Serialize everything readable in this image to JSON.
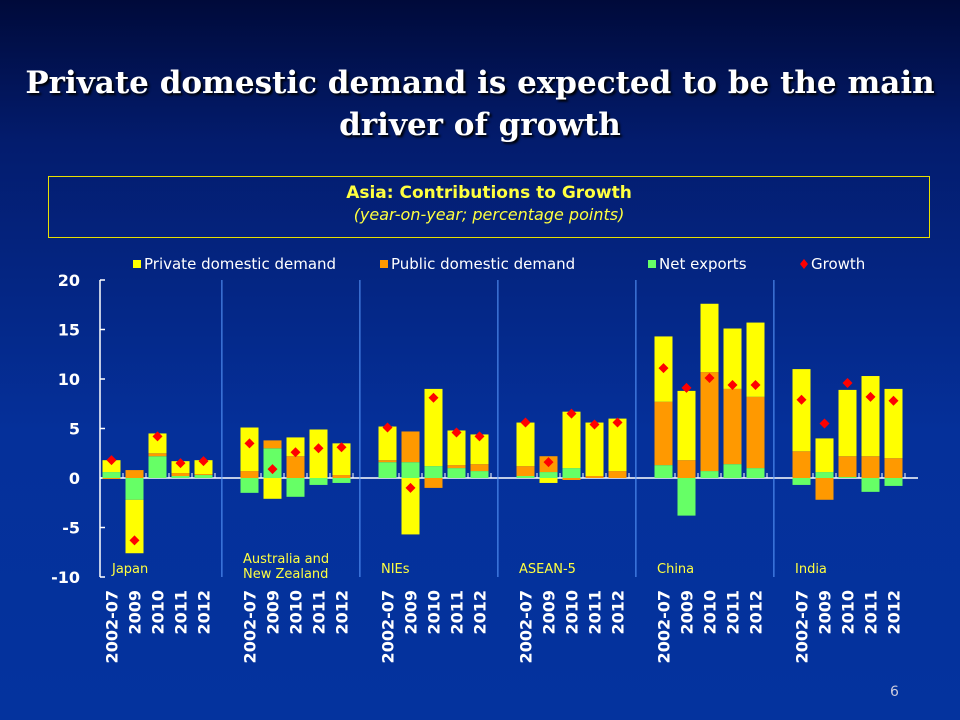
{
  "slide": {
    "title": "Private domestic demand is expected to be the main driver of growth",
    "page_number": "6"
  },
  "chart_data": {
    "type": "bar",
    "stacked": true,
    "title": "Asia: Contributions  to Growth",
    "subtitle": "(year-on-year; percentage points)",
    "ylim": [
      -10,
      20
    ],
    "yticks": [
      -10,
      -5,
      0,
      5,
      10,
      15,
      20
    ],
    "legend_position": "top",
    "groups": [
      "Japan",
      "Australia and New Zealand",
      "NIEs",
      "ASEAN-5",
      "China",
      "India"
    ],
    "categories": [
      "2002-07",
      "2009",
      "2010",
      "2011",
      "2012"
    ],
    "colors": {
      "private": "#ffff00",
      "public": "#ff9900",
      "net_exports": "#66ff66",
      "growth": "#ff0000"
    },
    "series": [
      {
        "name": "Private domestic demand",
        "key": "private",
        "mark": "bar",
        "values": [
          [
            1.2,
            -5.4,
            2.0,
            1.2,
            1.4
          ],
          [
            4.4,
            -2.1,
            1.9,
            4.9,
            3.2
          ],
          [
            3.4,
            -5.7,
            7.8,
            3.5,
            3.0
          ],
          [
            4.4,
            -0.5,
            5.7,
            5.4,
            5.3
          ],
          [
            6.6,
            7.0,
            6.9,
            6.1,
            7.5
          ],
          [
            8.3,
            3.4,
            6.7,
            8.1,
            7.0
          ]
        ]
      },
      {
        "name": "Public domestic demand",
        "key": "public",
        "mark": "bar",
        "values": [
          [
            -0.1,
            0.8,
            0.3,
            0.3,
            0.1
          ],
          [
            0.7,
            0.8,
            2.2,
            0.0,
            0.3
          ],
          [
            0.2,
            3.1,
            -1.0,
            0.3,
            0.7
          ],
          [
            1.0,
            1.6,
            -0.2,
            0.2,
            0.7
          ],
          [
            6.4,
            1.8,
            10.0,
            7.6,
            7.2
          ],
          [
            2.7,
            -2.2,
            2.1,
            2.2,
            2.0
          ]
        ]
      },
      {
        "name": "Net exports",
        "key": "net_exports",
        "mark": "bar",
        "values": [
          [
            0.6,
            -2.2,
            2.2,
            0.2,
            0.3
          ],
          [
            -1.5,
            3.0,
            -1.9,
            -0.7,
            -0.5
          ],
          [
            1.6,
            1.6,
            1.2,
            1.0,
            0.7
          ],
          [
            0.2,
            0.6,
            1.0,
            0.0,
            0.0
          ],
          [
            1.3,
            -3.8,
            0.7,
            1.4,
            1.0
          ],
          [
            -0.7,
            0.6,
            0.1,
            -1.4,
            -0.8
          ]
        ]
      },
      {
        "name": "Growth",
        "key": "growth",
        "mark": "diamond",
        "values": [
          [
            1.8,
            -6.3,
            4.2,
            1.5,
            1.7
          ],
          [
            3.5,
            0.9,
            2.6,
            3.0,
            3.1
          ],
          [
            5.1,
            -1.0,
            8.1,
            4.6,
            4.2
          ],
          [
            5.6,
            1.6,
            6.5,
            5.4,
            5.6
          ],
          [
            11.1,
            9.1,
            10.1,
            9.4,
            9.4
          ],
          [
            7.9,
            5.5,
            9.6,
            8.2,
            7.8
          ]
        ]
      }
    ]
  }
}
